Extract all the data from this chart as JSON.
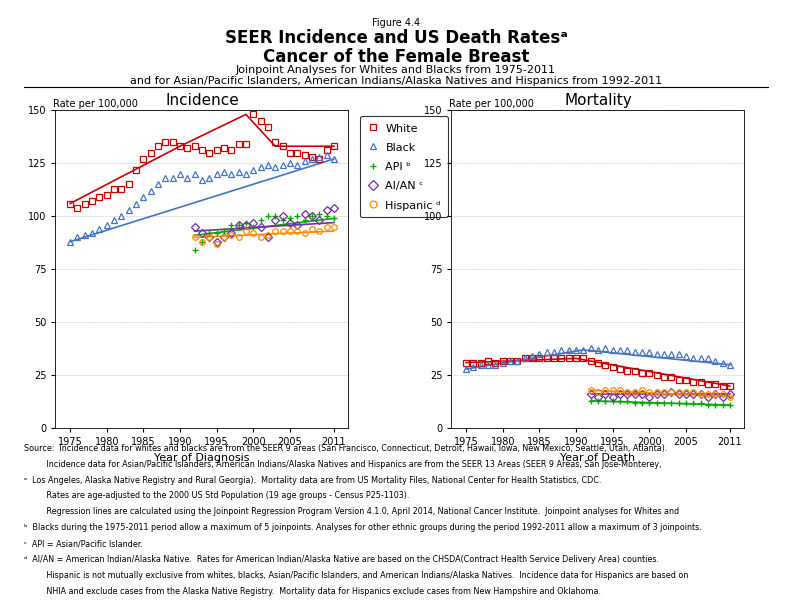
{
  "title_figure": "Figure 4.4",
  "title_line1": "SEER Incidence and US Death Ratesᵃ",
  "title_line2": "Cancer of the Female Breast",
  "title_line3": "Joinpoint Analyses for Whites and Blacks from 1975-2011",
  "title_line4": "and for Asian/Pacific Islanders, American Indians/Alaska Natives and Hispanics from 1992-2011",
  "incidence_title": "Incidence",
  "mortality_title": "Mortality",
  "ylabel": "Rate per 100,000",
  "xlabel_incidence": "Year of Diagnosis",
  "xlabel_mortality": "Year of Death",
  "white_color": "#CC0000",
  "black_color": "#4472C4",
  "api_color": "#00AA00",
  "aian_color": "#7030A0",
  "hispanic_color": "#FF8C00",
  "inc_white_x": [
    1975,
    1976,
    1977,
    1978,
    1979,
    1980,
    1981,
    1982,
    1983,
    1984,
    1985,
    1986,
    1987,
    1988,
    1989,
    1990,
    1991,
    1992,
    1993,
    1994,
    1995,
    1996,
    1997,
    1998,
    1999,
    2000,
    2001,
    2002,
    2003,
    2004,
    2005,
    2006,
    2007,
    2008,
    2009,
    2010,
    2011
  ],
  "inc_white_y": [
    106,
    104,
    106,
    107,
    109,
    110,
    113,
    113,
    115,
    122,
    127,
    130,
    133,
    135,
    135,
    133,
    132,
    133,
    131,
    130,
    131,
    132,
    131,
    134,
    134,
    148,
    145,
    142,
    135,
    133,
    130,
    130,
    129,
    128,
    127,
    131,
    133
  ],
  "inc_black_x": [
    1975,
    1976,
    1977,
    1978,
    1979,
    1980,
    1981,
    1982,
    1983,
    1984,
    1985,
    1986,
    1987,
    1988,
    1989,
    1990,
    1991,
    1992,
    1993,
    1994,
    1995,
    1996,
    1997,
    1998,
    1999,
    2000,
    2001,
    2002,
    2003,
    2004,
    2005,
    2006,
    2007,
    2008,
    2009,
    2010,
    2011
  ],
  "inc_black_y": [
    88,
    90,
    91,
    92,
    94,
    96,
    98,
    100,
    103,
    106,
    109,
    112,
    115,
    118,
    118,
    120,
    118,
    120,
    117,
    118,
    120,
    121,
    120,
    121,
    120,
    122,
    123,
    124,
    123,
    124,
    125,
    124,
    126,
    127,
    128,
    129,
    127
  ],
  "inc_api_x": [
    1992,
    1993,
    1994,
    1995,
    1996,
    1997,
    1998,
    1999,
    2000,
    2001,
    2002,
    2003,
    2004,
    2005,
    2006,
    2007,
    2008,
    2009,
    2010,
    2011
  ],
  "inc_api_y": [
    84,
    88,
    92,
    92,
    93,
    96,
    96,
    97,
    95,
    98,
    100,
    100,
    98,
    99,
    100,
    98,
    100,
    101,
    100,
    99
  ],
  "inc_aian_x": [
    1992,
    1993,
    1994,
    1995,
    1996,
    1997,
    1998,
    1999,
    2000,
    2001,
    2002,
    2003,
    2004,
    2005,
    2006,
    2007,
    2008,
    2009,
    2010,
    2011
  ],
  "inc_aian_y": [
    95,
    92,
    90,
    88,
    90,
    92,
    96,
    96,
    97,
    95,
    90,
    98,
    100,
    97,
    96,
    101,
    100,
    98,
    103,
    104
  ],
  "inc_hispanic_x": [
    1992,
    1993,
    1994,
    1995,
    1996,
    1997,
    1998,
    1999,
    2000,
    2001,
    2002,
    2003,
    2004,
    2005,
    2006,
    2007,
    2008,
    2009,
    2010,
    2011
  ],
  "inc_hispanic_y": [
    90,
    88,
    90,
    87,
    90,
    91,
    90,
    93,
    92,
    90,
    91,
    93,
    93,
    93,
    93,
    92,
    94,
    93,
    95,
    95
  ],
  "inc_white_line_x": [
    1975,
    1990,
    1999,
    2003,
    2011
  ],
  "inc_white_line_y": [
    106,
    133,
    148,
    133,
    133
  ],
  "inc_black_line_x": [
    1975,
    2011
  ],
  "inc_black_line_y": [
    88,
    127
  ],
  "inc_api_line_x": [
    1992,
    2011
  ],
  "inc_api_line_y": [
    91,
    99
  ],
  "inc_aian_line_x": [
    1992,
    2011
  ],
  "inc_aian_line_y": [
    93,
    97
  ],
  "inc_hispanic_line_x": [
    1992,
    2011
  ],
  "inc_hispanic_line_y": [
    90,
    93
  ],
  "mort_white_x": [
    1975,
    1976,
    1977,
    1978,
    1979,
    1980,
    1981,
    1982,
    1983,
    1984,
    1985,
    1986,
    1987,
    1988,
    1989,
    1990,
    1991,
    1992,
    1993,
    1994,
    1995,
    1996,
    1997,
    1998,
    1999,
    2000,
    2001,
    2002,
    2003,
    2004,
    2005,
    2006,
    2007,
    2008,
    2009,
    2010,
    2011
  ],
  "mort_white_y": [
    31,
    31,
    31,
    32,
    31,
    32,
    32,
    32,
    33,
    33,
    33,
    33,
    33,
    33,
    33,
    33,
    33,
    32,
    31,
    30,
    29,
    28,
    27,
    27,
    26,
    26,
    25,
    24,
    24,
    23,
    23,
    22,
    22,
    21,
    21,
    20,
    20
  ],
  "mort_black_x": [
    1975,
    1976,
    1977,
    1978,
    1979,
    1980,
    1981,
    1982,
    1983,
    1984,
    1985,
    1986,
    1987,
    1988,
    1989,
    1990,
    1991,
    1992,
    1993,
    1994,
    1995,
    1996,
    1997,
    1998,
    1999,
    2000,
    2001,
    2002,
    2003,
    2004,
    2005,
    2006,
    2007,
    2008,
    2009,
    2010,
    2011
  ],
  "mort_black_y": [
    28,
    29,
    30,
    30,
    30,
    31,
    32,
    32,
    33,
    34,
    35,
    36,
    36,
    37,
    37,
    37,
    37,
    38,
    37,
    38,
    37,
    37,
    37,
    36,
    36,
    36,
    35,
    35,
    35,
    35,
    34,
    33,
    33,
    33,
    32,
    31,
    30
  ],
  "mort_api_x": [
    1992,
    1993,
    1994,
    1995,
    1996,
    1997,
    1998,
    1999,
    2000,
    2001,
    2002,
    2003,
    2004,
    2005,
    2006,
    2007,
    2008,
    2009,
    2010,
    2011
  ],
  "mort_api_y": [
    13,
    13,
    13,
    13,
    13,
    13,
    12,
    12,
    12,
    12,
    12,
    12,
    12,
    12,
    12,
    12,
    11,
    11,
    11,
    11
  ],
  "mort_aian_x": [
    1992,
    1993,
    1994,
    1995,
    1996,
    1997,
    1998,
    1999,
    2000,
    2001,
    2002,
    2003,
    2004,
    2005,
    2006,
    2007,
    2008,
    2009,
    2010,
    2011
  ],
  "mort_aian_y": [
    16,
    15,
    16,
    15,
    16,
    16,
    16,
    16,
    15,
    16,
    16,
    17,
    16,
    16,
    16,
    16,
    15,
    16,
    15,
    16
  ],
  "mort_hispanic_x": [
    1992,
    1993,
    1994,
    1995,
    1996,
    1997,
    1998,
    1999,
    2000,
    2001,
    2002,
    2003,
    2004,
    2005,
    2006,
    2007,
    2008,
    2009,
    2010,
    2011
  ],
  "mort_hispanic_y": [
    18,
    17,
    18,
    18,
    18,
    17,
    17,
    18,
    17,
    17,
    17,
    17,
    17,
    17,
    17,
    16,
    16,
    16,
    16,
    15
  ],
  "mort_white_line_x": [
    1975,
    1990,
    2011
  ],
  "mort_white_line_y": [
    31,
    33,
    20
  ],
  "mort_black_line_x": [
    1975,
    1991,
    2011
  ],
  "mort_black_line_y": [
    28,
    37,
    30
  ],
  "mort_api_line_x": [
    1992,
    2011
  ],
  "mort_api_line_y": [
    13,
    11
  ],
  "mort_aian_line_x": [
    1992,
    2011
  ],
  "mort_aian_line_y": [
    16,
    16
  ],
  "mort_hispanic_line_x": [
    1992,
    2011
  ],
  "mort_hispanic_line_y": [
    18,
    15
  ],
  "ylim": [
    0,
    150
  ],
  "yticks": [
    0,
    25,
    50,
    75,
    100,
    125,
    150
  ],
  "xticks": [
    1975,
    1980,
    1985,
    1990,
    1995,
    2000,
    2005,
    2011
  ],
  "footnote_lines": [
    "Source:  Incidence data for whites and blacks are from the SEER 9 areas (San Francisco, Connecticut, Detroit, Hawaii, Iowa, New Mexico, Seattle, Utah, Atlanta).",
    "         Incidence data for Asian/Pacific Islanders, American Indians/Alaska Natives and Hispanics are from the SEER 13 Areas (SEER 9 Areas, San Jose-Monterey,",
    "ᵃ  Los Angeles, Alaska Native Registry and Rural Georgia).  Mortality data are from US Mortality Files, National Center for Health Statistics, CDC.",
    "         Rates are age-adjusted to the 2000 US Std Population (19 age groups - Census P25-1103).",
    "         Regression lines are calculated using the Joinpoint Regression Program Version 4.1.0, April 2014, National Cancer Institute.  Joinpoint analyses for Whites and",
    "ᵇ  Blacks during the 1975-2011 period allow a maximum of 5 joinpoints. Analyses for other ethnic groups during the period 1992-2011 allow a maximum of 3 joinpoints.",
    "ᶜ  API = Asian/Pacific Islander.",
    "ᵈ  AI/AN = American Indian/Alaska Native.  Rates for American Indian/Alaska Native are based on the CHSDA(Contract Health Service Delivery Area) counties.",
    "         Hispanic is not mutually exclusive from whites, blacks, Asian/Pacific Islanders, and American Indians/Alaska Natives.  Incidence data for Hispanics are based on",
    "         NHIA and exclude cases from the Alaska Native Registry.  Mortality data for Hispanics exclude cases from New Hampshire and Oklahoma."
  ]
}
